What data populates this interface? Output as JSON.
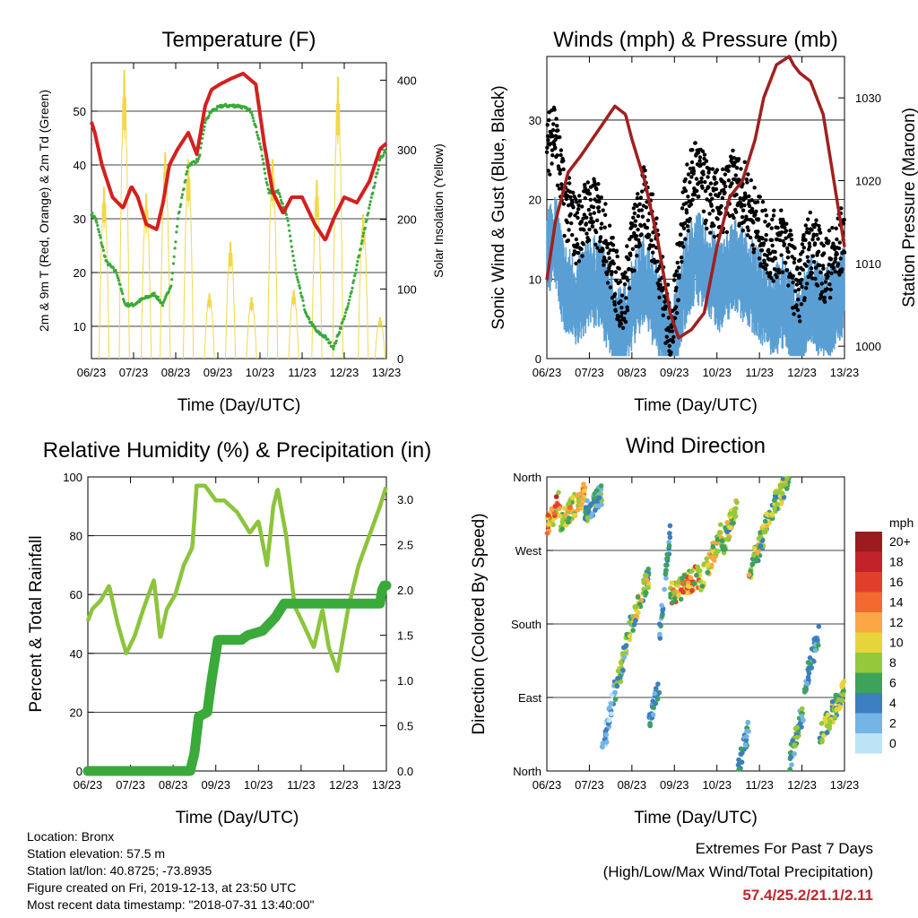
{
  "colors": {
    "temp": "#d42020",
    "dew": "#3aaa3a",
    "solar": "#f2d84a",
    "gust": "#000000",
    "wind": "#5a9fd4",
    "pressure": "#a02020",
    "rh": "#8cc43c",
    "precip": "#3aaa3a"
  },
  "chart_data": [
    {
      "id": "temperature",
      "type": "line",
      "title": "Temperature (F)",
      "xlabel": "Time (Day/UTC)",
      "ylabel": "2m & 9m T (Red, Orange) & 2m Td (Green)",
      "y2label": "Solar Insolation (Yellow)",
      "x_ticks": [
        "06/23",
        "07/23",
        "08/23",
        "09/23",
        "10/23",
        "11/23",
        "12/23",
        "13/23"
      ],
      "ylim": [
        4,
        59
      ],
      "y_ticks": [
        10,
        20,
        30,
        40,
        50
      ],
      "y2lim": [
        0,
        425
      ],
      "y2_ticks": [
        0,
        100,
        200,
        300,
        400
      ],
      "grid": true,
      "series": [
        {
          "key": "temp",
          "color_key": "temp",
          "axis": "y",
          "x": [
            0,
            0.08,
            0.25,
            0.5,
            0.75,
            0.95,
            1.1,
            1.3,
            1.55,
            1.7,
            1.85,
            2.05,
            2.3,
            2.5,
            2.7,
            2.85,
            3.05,
            3.3,
            3.6,
            3.9,
            4.1,
            4.3,
            4.55,
            4.75,
            5.0,
            5.3,
            5.55,
            5.75,
            6.0,
            6.3,
            6.6,
            6.85,
            7.0
          ],
          "values": [
            48,
            46,
            40,
            34,
            32,
            36,
            34,
            29,
            28,
            33,
            40,
            43,
            46,
            42,
            51,
            54,
            55,
            56,
            57,
            55,
            44,
            35,
            31,
            34,
            34,
            29,
            26,
            30,
            34,
            33,
            37,
            43,
            44
          ]
        },
        {
          "key": "dew",
          "color_key": "dew",
          "axis": "y",
          "x": [
            0,
            0.1,
            0.35,
            0.6,
            0.8,
            1.0,
            1.2,
            1.5,
            1.7,
            1.9,
            2.05,
            2.3,
            2.55,
            2.7,
            2.85,
            3.1,
            3.5,
            3.8,
            4.0,
            4.2,
            4.45,
            4.65,
            4.85,
            5.1,
            5.35,
            5.55,
            5.75,
            6.1,
            6.4,
            6.65,
            6.85,
            7.0
          ],
          "values": [
            31,
            30,
            22,
            20,
            14,
            14,
            15,
            16,
            14,
            18,
            30,
            40,
            41,
            48,
            50,
            51,
            51,
            50,
            44,
            35,
            35,
            30,
            20,
            12,
            9,
            8,
            6,
            14,
            25,
            34,
            41,
            43
          ]
        },
        {
          "key": "solar",
          "color_key": "solar",
          "axis": "y2",
          "peaks": [
            {
              "x": 0.3,
              "value": 250
            },
            {
              "x": 0.78,
              "value": 420
            },
            {
              "x": 1.3,
              "value": 240
            },
            {
              "x": 1.75,
              "value": 300
            },
            {
              "x": 2.3,
              "value": 290
            },
            {
              "x": 2.8,
              "value": 95
            },
            {
              "x": 3.3,
              "value": 170
            },
            {
              "x": 3.8,
              "value": 90
            },
            {
              "x": 4.3,
              "value": 290
            },
            {
              "x": 4.8,
              "value": 100
            },
            {
              "x": 5.35,
              "value": 260
            },
            {
              "x": 5.85,
              "value": 410
            },
            {
              "x": 6.45,
              "value": 210
            },
            {
              "x": 6.85,
              "value": 60
            }
          ]
        }
      ]
    },
    {
      "id": "winds",
      "type": "scatter",
      "title": "Winds (mph) & Pressure (mb)",
      "xlabel": "Time (Day/UTC)",
      "ylabel": "Sonic Wind & Gust (Blue, Black)",
      "y2label": "Station Pressure (Maroon)",
      "x_ticks": [
        "06/23",
        "07/23",
        "08/23",
        "09/23",
        "10/23",
        "11/23",
        "12/23",
        "13/23"
      ],
      "ylim": [
        0,
        38
      ],
      "y_ticks": [
        0,
        10,
        20,
        30
      ],
      "y2lim": [
        998.5,
        1035
      ],
      "y2_ticks": [
        1000,
        1010,
        1020,
        1030
      ],
      "grid": true,
      "series": [
        {
          "key": "wind",
          "color_key": "wind",
          "axis": "y",
          "x": [
            0,
            0.2,
            0.4,
            0.7,
            1.0,
            1.3,
            1.6,
            1.8,
            2.0,
            2.3,
            2.6,
            2.8,
            2.95,
            3.2,
            3.5,
            3.8,
            4.1,
            4.4,
            4.7,
            5.0,
            5.3,
            5.6,
            5.9,
            6.2,
            6.5,
            6.8,
            7.0
          ],
          "values": [
            15,
            16,
            10,
            8,
            11,
            10,
            5,
            4,
            8,
            11,
            7,
            3,
            2,
            10,
            14,
            12,
            10,
            13,
            11,
            9,
            7,
            8,
            4,
            9,
            6,
            8,
            10
          ]
        },
        {
          "key": "gust",
          "color_key": "gust",
          "axis": "y",
          "x": [
            0,
            0.15,
            0.4,
            0.7,
            1.0,
            1.3,
            1.6,
            1.8,
            2.0,
            2.3,
            2.6,
            2.8,
            2.95,
            3.2,
            3.5,
            3.8,
            4.1,
            4.4,
            4.7,
            5.0,
            5.3,
            5.6,
            5.9,
            6.2,
            6.5,
            6.8,
            7.0
          ],
          "values": [
            25,
            30,
            20,
            16,
            19,
            17,
            10,
            7,
            14,
            20,
            14,
            6,
            3,
            18,
            24,
            20,
            19,
            22,
            20,
            16,
            14,
            15,
            8,
            15,
            11,
            13,
            16
          ]
        },
        {
          "key": "pressure",
          "color_key": "pressure",
          "axis": "y2",
          "x": [
            0,
            0.2,
            0.5,
            0.8,
            1.2,
            1.6,
            1.85,
            2.0,
            2.3,
            2.6,
            2.9,
            3.1,
            3.4,
            3.7,
            4.0,
            4.3,
            4.6,
            4.9,
            5.1,
            5.4,
            5.7,
            5.8,
            5.95,
            6.2,
            6.5,
            6.75,
            7.0
          ],
          "values": [
            1008,
            1015,
            1021,
            1023,
            1026,
            1029,
            1028,
            1025,
            1020,
            1013,
            1004,
            1001,
            1002,
            1004,
            1012,
            1018,
            1020,
            1025,
            1030,
            1034,
            1035,
            1034,
            1033,
            1032,
            1028,
            1020,
            1012
          ]
        }
      ]
    },
    {
      "id": "humidity",
      "type": "line",
      "title": "Relative Humidity (%) & Precipitation (in)",
      "xlabel": "Time (Day/UTC)",
      "ylabel": "Percent & Total Rainfall",
      "x_ticks": [
        "06/23",
        "07/23",
        "08/23",
        "09/23",
        "10/23",
        "11/23",
        "12/23",
        "13/23"
      ],
      "ylim": [
        0,
        100
      ],
      "y_ticks": [
        0,
        20,
        40,
        60,
        80,
        100
      ],
      "y2lim": [
        0,
        3.25
      ],
      "y2_ticks": [
        "0.0",
        "0.5",
        "1.0",
        "1.5",
        "2.0",
        "2.5",
        "3.0"
      ],
      "grid": true,
      "series": [
        {
          "key": "rh",
          "color_key": "rh",
          "axis": "y",
          "x": [
            0,
            0.1,
            0.3,
            0.5,
            0.7,
            0.9,
            1.1,
            1.3,
            1.55,
            1.7,
            1.85,
            2.05,
            2.25,
            2.45,
            2.55,
            2.75,
            3.0,
            3.2,
            3.5,
            3.8,
            4.0,
            4.2,
            4.35,
            4.45,
            4.65,
            4.85,
            5.05,
            5.3,
            5.5,
            5.65,
            5.85,
            6.1,
            6.35,
            6.6,
            6.85,
            7.0
          ],
          "values": [
            51,
            55,
            58,
            63,
            50,
            40,
            46,
            55,
            65,
            45,
            55,
            60,
            70,
            76,
            97,
            97,
            92,
            92,
            88,
            81,
            85,
            70,
            90,
            96,
            80,
            56,
            50,
            42,
            55,
            42,
            34,
            55,
            70,
            80,
            90,
            97
          ]
        },
        {
          "key": "precip",
          "color_key": "precip",
          "axis": "y2",
          "x": [
            0,
            2.4,
            2.5,
            2.6,
            2.8,
            2.9,
            3.05,
            3.3,
            3.6,
            3.75,
            4.1,
            4.4,
            4.6,
            4.8,
            5.5,
            6.0,
            6.5,
            6.85,
            6.9,
            6.95,
            7.0
          ],
          "values": [
            0,
            0,
            0.2,
            0.6,
            0.65,
            1.0,
            1.45,
            1.45,
            1.45,
            1.5,
            1.55,
            1.7,
            1.85,
            1.85,
            1.85,
            1.85,
            1.85,
            1.85,
            2.0,
            2.05,
            2.05
          ]
        }
      ]
    },
    {
      "id": "direction",
      "type": "scatter",
      "title": "Wind Direction",
      "xlabel": "Time (Day/UTC)",
      "ylabel": "Direction (Colored By Speed)",
      "x_ticks": [
        "06/23",
        "07/23",
        "08/23",
        "09/23",
        "10/23",
        "11/23",
        "12/23",
        "13/23"
      ],
      "ylim": [
        0,
        360
      ],
      "y_ticks": [
        "North",
        "East",
        "South",
        "West",
        "North"
      ],
      "grid": true,
      "legend": {
        "title": "mph",
        "labels": [
          "20+",
          "18",
          "16",
          "14",
          "12",
          "10",
          "8",
          "6",
          "4",
          "2",
          "0"
        ],
        "colors": [
          "#9b1b1e",
          "#c2232a",
          "#e0402b",
          "#f26a30",
          "#fba745",
          "#e6d53a",
          "#96c83c",
          "#3da35a",
          "#3b7fc0",
          "#74b5e6",
          "#bde3f7"
        ],
        "placement": "right"
      },
      "clusters": [
        {
          "x0": 0.0,
          "x1": 0.3,
          "d0": 300,
          "d1": 330,
          "s0": 8,
          "s1": 18
        },
        {
          "x0": 0.3,
          "x1": 0.9,
          "d0": 305,
          "d1": 340,
          "s0": 6,
          "s1": 14
        },
        {
          "x0": 0.9,
          "x1": 1.3,
          "d0": 315,
          "d1": 340,
          "s0": 2,
          "s1": 8
        },
        {
          "x0": 1.3,
          "x1": 1.6,
          "d0": 20,
          "d1": 100,
          "s0": 0,
          "s1": 5
        },
        {
          "x0": 1.6,
          "x1": 2.0,
          "d0": 90,
          "d1": 185,
          "s0": 2,
          "s1": 10
        },
        {
          "x0": 2.0,
          "x1": 2.4,
          "d0": 180,
          "d1": 240,
          "s0": 4,
          "s1": 12
        },
        {
          "x0": 2.4,
          "x1": 2.65,
          "d0": 60,
          "d1": 110,
          "s0": 2,
          "s1": 6
        },
        {
          "x0": 2.65,
          "x1": 2.9,
          "d0": 170,
          "d1": 290,
          "s0": 1,
          "s1": 6
        },
        {
          "x0": 2.9,
          "x1": 3.6,
          "d0": 215,
          "d1": 240,
          "s0": 6,
          "s1": 17
        },
        {
          "x0": 3.6,
          "x1": 4.1,
          "d0": 230,
          "d1": 290,
          "s0": 6,
          "s1": 12
        },
        {
          "x0": 4.1,
          "x1": 4.5,
          "d0": 270,
          "d1": 330,
          "s0": 4,
          "s1": 12
        },
        {
          "x0": 4.5,
          "x1": 4.75,
          "d0": 0,
          "d1": 50,
          "s0": 2,
          "s1": 6
        },
        {
          "x0": 4.75,
          "x1": 5.1,
          "d0": 240,
          "d1": 290,
          "s0": 4,
          "s1": 12
        },
        {
          "x0": 5.1,
          "x1": 5.7,
          "d0": 300,
          "d1": 360,
          "s0": 4,
          "s1": 12
        },
        {
          "x0": 5.7,
          "x1": 6.05,
          "d0": 10,
          "d1": 80,
          "s0": 2,
          "s1": 8
        },
        {
          "x0": 6.05,
          "x1": 6.4,
          "d0": 100,
          "d1": 170,
          "s0": 2,
          "s1": 6
        },
        {
          "x0": 6.4,
          "x1": 7.0,
          "d0": 40,
          "d1": 100,
          "s0": 3,
          "s1": 11
        }
      ]
    }
  ],
  "info": {
    "location": "Location: Bronx",
    "elevation": "Station elevation: 57.5 m",
    "latlon": "Station lat/lon: 40.8725; -73.8935",
    "created": "Figure created on Fri, 2019-12-13, at 23:50 UTC",
    "recent": "Most recent data timestamp: \"2018-07-31 13:40:00\""
  },
  "extremes": {
    "line1": "Extremes For Past 7 Days",
    "line2": "(High/Low/Max Wind/Total Precipitation)",
    "values": "57.4/25.2/21.1/2.11"
  }
}
